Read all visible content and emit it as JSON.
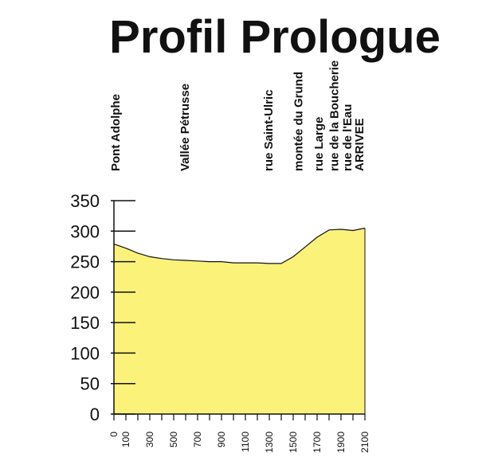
{
  "chart_data": {
    "type": "area",
    "title": "Profil Prologue",
    "xlabel": "",
    "ylabel": "",
    "fill_color": "#fbf27a",
    "stroke_color": "#111111",
    "xlim": [
      0,
      2100
    ],
    "ylim": [
      0,
      350
    ],
    "y_ticks": [
      0,
      50,
      100,
      150,
      200,
      250,
      300,
      350
    ],
    "x_ticks": [
      0,
      100,
      300,
      500,
      700,
      900,
      1100,
      1300,
      1500,
      1700,
      1900,
      2100
    ],
    "x_minor_ticks": [
      200,
      400,
      600,
      800,
      1000,
      1200,
      1400,
      1600,
      1800,
      2000
    ],
    "x": [
      0,
      100,
      200,
      300,
      400,
      500,
      600,
      700,
      800,
      900,
      1000,
      1100,
      1200,
      1300,
      1400,
      1500,
      1600,
      1700,
      1800,
      1900,
      2000,
      2100
    ],
    "values": [
      279,
      272,
      264,
      258,
      255,
      253,
      252,
      251,
      250,
      250,
      248,
      248,
      248,
      247,
      247,
      258,
      274,
      290,
      302,
      303,
      301,
      305
    ],
    "places": [
      {
        "label": "Pont Adolphe",
        "x": 0
      },
      {
        "label": "Vallée Pétrusse",
        "x": 580
      },
      {
        "label": "rue Saint-Ulric",
        "x": 1280
      },
      {
        "label": "montée du Grund",
        "x": 1530
      },
      {
        "label": "rue Large",
        "x": 1700
      },
      {
        "label": "rue de la Boucherie",
        "x": 1830
      },
      {
        "label": "rue de l'Eau",
        "x": 1940
      },
      {
        "label": "ARRIVEE",
        "x": 2040
      }
    ]
  }
}
